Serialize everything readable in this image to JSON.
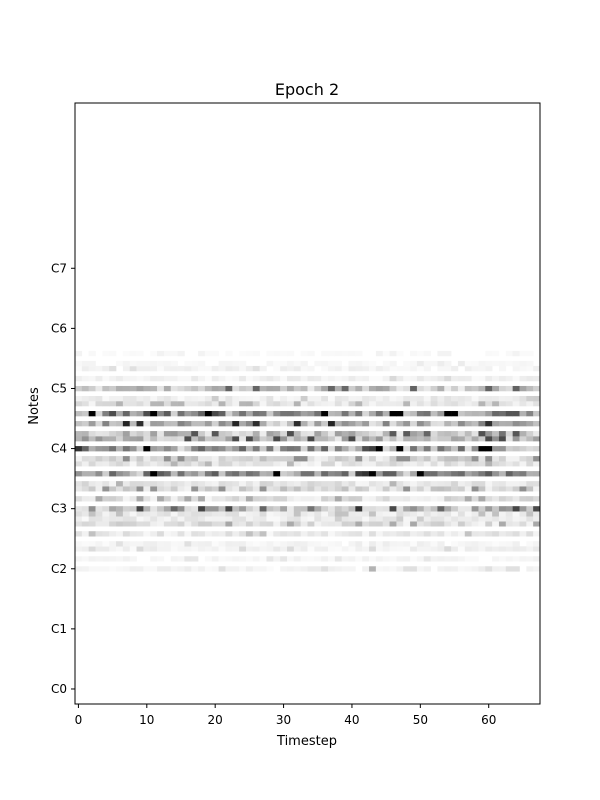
{
  "chart_data": {
    "type": "heatmap",
    "title": "Epoch 2",
    "xlabel": "Timestep",
    "ylabel": "Notes",
    "xlim": [
      -0.5,
      67.5
    ],
    "ylim": [
      -3,
      117
    ],
    "x_ticks": [
      {
        "value": 0,
        "label": "0"
      },
      {
        "value": 10,
        "label": "10"
      },
      {
        "value": 20,
        "label": "20"
      },
      {
        "value": 30,
        "label": "30"
      },
      {
        "value": 40,
        "label": "40"
      },
      {
        "value": 50,
        "label": "50"
      },
      {
        "value": 60,
        "label": "60"
      }
    ],
    "y_ticks": [
      {
        "value": 0,
        "label": "C0"
      },
      {
        "value": 12,
        "label": "C1"
      },
      {
        "value": 24,
        "label": "C2"
      },
      {
        "value": 36,
        "label": "C3"
      },
      {
        "value": 48,
        "label": "C4"
      },
      {
        "value": 60,
        "label": "C5"
      },
      {
        "value": 72,
        "label": "C6"
      },
      {
        "value": 84,
        "label": "C7"
      }
    ],
    "timesteps": 68,
    "colormap": "greys",
    "grid": false,
    "note_rows": [
      {
        "note": 24,
        "base": 0.05
      },
      {
        "note": 26,
        "base": 0.04
      },
      {
        "note": 28,
        "base": 0.06
      },
      {
        "note": 29,
        "base": 0.05
      },
      {
        "note": 31,
        "base": 0.1
      },
      {
        "note": 33,
        "base": 0.14
      },
      {
        "note": 34,
        "base": 0.08
      },
      {
        "note": 35,
        "base": 0.1
      },
      {
        "note": 36,
        "base": 0.3
      },
      {
        "note": 38,
        "base": 0.14
      },
      {
        "note": 40,
        "base": 0.18
      },
      {
        "note": 41,
        "base": 0.12
      },
      {
        "note": 43,
        "base": 0.45
      },
      {
        "note": 45,
        "base": 0.12
      },
      {
        "note": 46,
        "base": 0.18
      },
      {
        "note": 48,
        "base": 0.42
      },
      {
        "note": 50,
        "base": 0.3
      },
      {
        "note": 51,
        "base": 0.28
      },
      {
        "note": 53,
        "base": 0.35
      },
      {
        "note": 55,
        "base": 0.5
      },
      {
        "note": 57,
        "base": 0.12
      },
      {
        "note": 58,
        "base": 0.08
      },
      {
        "note": 60,
        "base": 0.25
      },
      {
        "note": 62,
        "base": 0.06
      },
      {
        "note": 64,
        "base": 0.05
      },
      {
        "note": 65,
        "base": 0.03
      },
      {
        "note": 67,
        "base": 0.02
      }
    ],
    "hot_cells": [
      {
        "t": 43,
        "note": 43,
        "value": 1.0
      },
      {
        "t": 42,
        "note": 43,
        "value": 0.8
      },
      {
        "t": 41,
        "note": 43,
        "value": 0.75
      },
      {
        "t": 41,
        "note": 36,
        "value": 0.8
      },
      {
        "t": 43,
        "note": 48,
        "value": 0.75
      },
      {
        "t": 42,
        "note": 48,
        "value": 0.7
      },
      {
        "t": 0,
        "note": 48,
        "value": 0.8
      },
      {
        "t": 53,
        "note": 36,
        "value": 0.6
      },
      {
        "t": 14,
        "note": 36,
        "value": 0.6
      },
      {
        "t": 27,
        "note": 36,
        "value": 0.6
      },
      {
        "t": 34,
        "note": 36,
        "value": 0.55
      },
      {
        "t": 46,
        "note": 51,
        "value": 0.65
      },
      {
        "t": 48,
        "note": 51,
        "value": 0.65
      },
      {
        "t": 51,
        "note": 51,
        "value": 0.6
      },
      {
        "t": 62,
        "note": 51,
        "value": 0.55
      },
      {
        "t": 43,
        "note": 24,
        "value": 0.3
      }
    ]
  }
}
